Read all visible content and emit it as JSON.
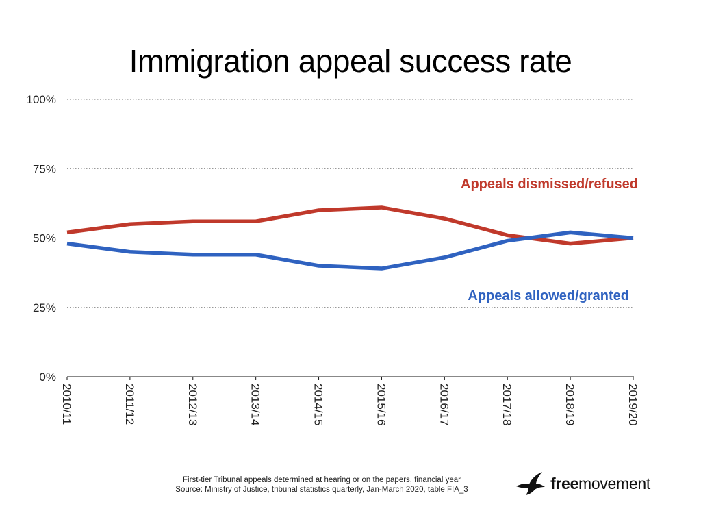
{
  "chart_data": {
    "type": "line",
    "title": "Immigration appeal success rate",
    "categories": [
      "2010/11",
      "2011/12",
      "2012/13",
      "2013/14",
      "2014/15",
      "2015/16",
      "2016/17",
      "2017/18",
      "2018/19",
      "2019/20"
    ],
    "series": [
      {
        "name": "Appeals dismissed/refused",
        "color": "#c0392b",
        "values": [
          52,
          55,
          56,
          56,
          60,
          61,
          57,
          51,
          48,
          50
        ]
      },
      {
        "name": "Appeals allowed/granted",
        "color": "#2f62c0",
        "values": [
          48,
          45,
          44,
          44,
          40,
          39,
          43,
          49,
          52,
          50
        ]
      }
    ],
    "ylim": [
      0,
      100
    ],
    "yticks": [
      0,
      25,
      50,
      75,
      100
    ],
    "ytick_labels": [
      "0%",
      "25%",
      "50%",
      "75%",
      "100%"
    ],
    "grid": true,
    "legend_placement": "inline labels"
  },
  "footnote": {
    "line1": "First-tier Tribunal appeals determined at hearing or on the papers, financial year",
    "line2": "Source: Ministry of Justice, tribunal statistics quarterly, Jan-March 2020, table FIA_3"
  },
  "logo": {
    "bold": "free",
    "regular": "movement",
    "icon": "bird-icon"
  }
}
